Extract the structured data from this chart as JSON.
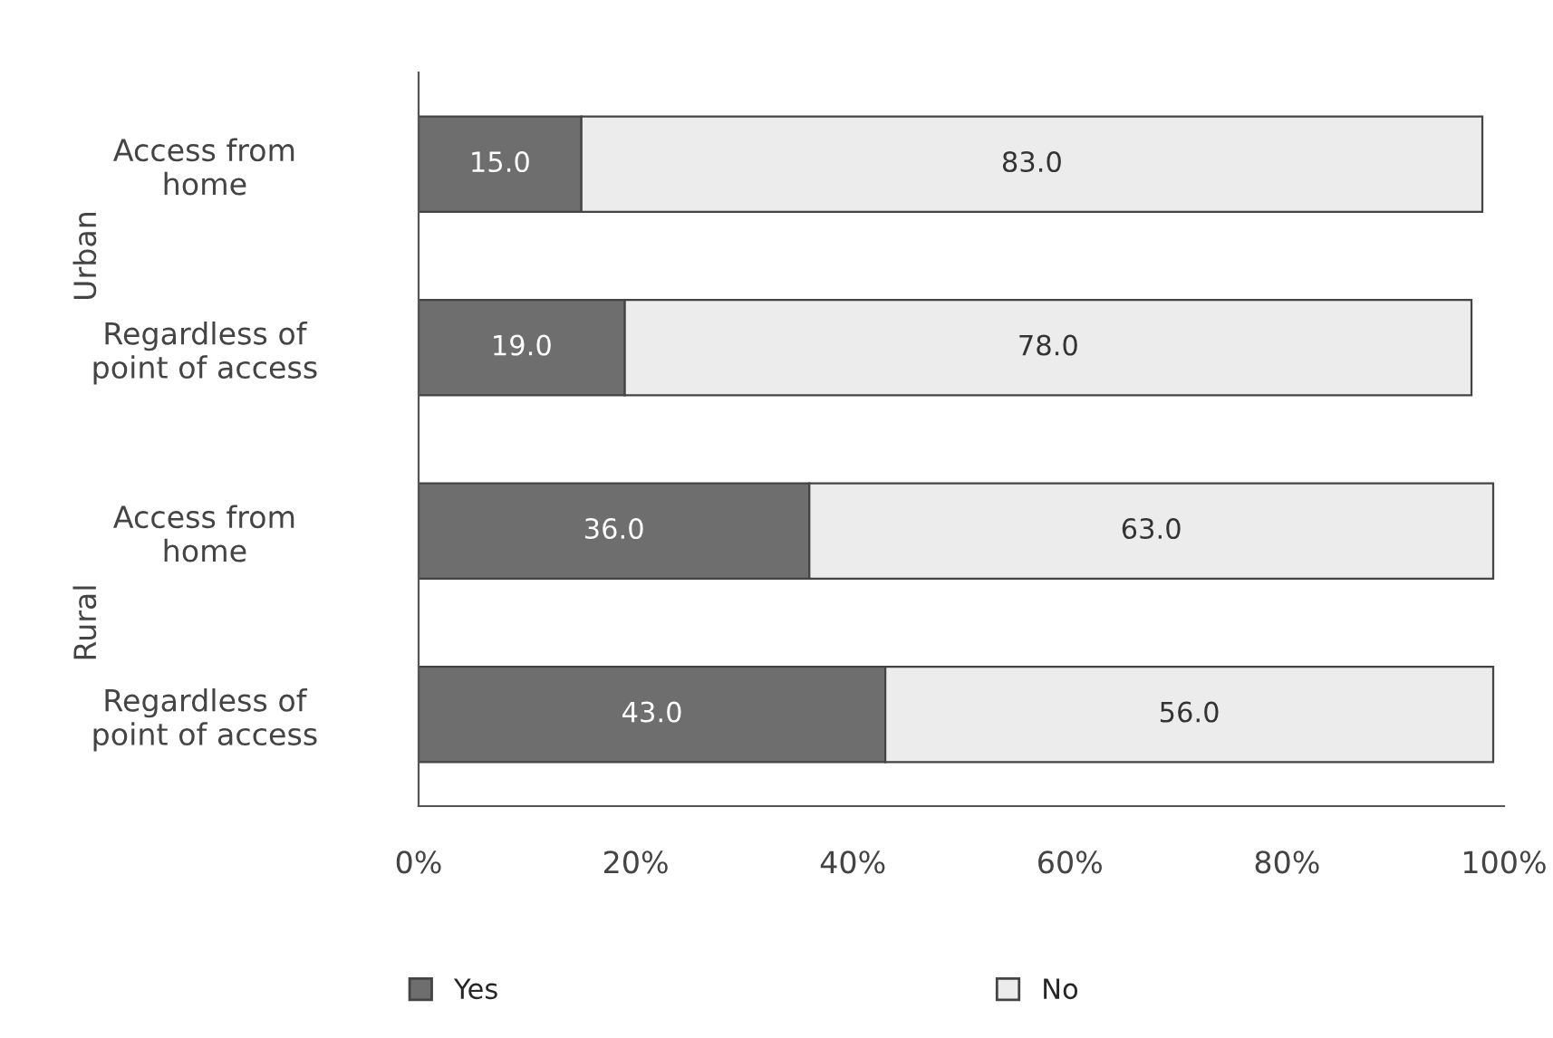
{
  "chart_data": {
    "type": "bar",
    "orientation": "horizontal",
    "stacked": true,
    "categories": [
      "Access from\nhome",
      "Regardless of\npoint of access",
      "Access from\nhome",
      "Regardless of\npoint of access"
    ],
    "series": [
      {
        "name": "Yes",
        "color": "#6e6e6e",
        "values": [
          15,
          19,
          36,
          43
        ],
        "value_labels": [
          "15.0",
          "19.0",
          "36.0",
          "43.0"
        ]
      },
      {
        "name": "No",
        "color": "#ececec",
        "values": [
          83,
          78,
          63,
          56
        ],
        "value_labels": [
          "83.0",
          "78.0",
          "63.0",
          "56.0"
        ]
      }
    ],
    "xlim": [
      0,
      100
    ],
    "xticks": [
      {
        "value": 0,
        "label": "0%"
      },
      {
        "value": 20,
        "label": "20%"
      },
      {
        "value": 40,
        "label": "40%"
      },
      {
        "value": 60,
        "label": "60%"
      },
      {
        "value": 80,
        "label": "80%"
      },
      {
        "value": 100,
        "label": "100%"
      }
    ],
    "annotations": [
      "Urban",
      "Rural"
    ],
    "grid": false,
    "legend": "bottom"
  }
}
